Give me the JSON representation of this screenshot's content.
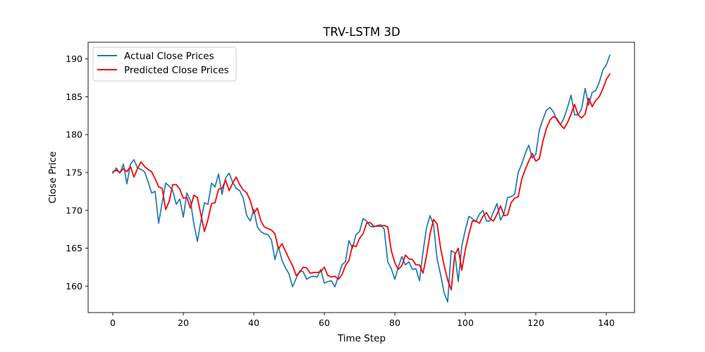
{
  "chart_data": {
    "type": "line",
    "title": "TRV-LSTM 3D",
    "xlabel": "Time Step",
    "ylabel": "Close Price",
    "xlim": [
      -7,
      148
    ],
    "ylim": [
      156.5,
      192.2
    ],
    "xticks": [
      0,
      20,
      40,
      60,
      80,
      100,
      120,
      140
    ],
    "yticks": [
      160,
      165,
      170,
      175,
      180,
      185,
      190
    ],
    "grid": false,
    "legend_position": "upper left",
    "series": [
      {
        "name": "Actual Close Prices",
        "color": "#1f77b4",
        "x_start": 0,
        "values": [
          174.9,
          175.6,
          174.9,
          176.1,
          173.5,
          176.1,
          176.7,
          175.6,
          175.4,
          175.1,
          173.8,
          172.3,
          172.5,
          168.3,
          171.0,
          173.6,
          173.2,
          172.6,
          170.8,
          171.5,
          169.1,
          172.3,
          171.3,
          168.2,
          165.9,
          168.6,
          171.0,
          170.8,
          173.6,
          173.1,
          174.8,
          172.1,
          174.3,
          174.9,
          173.7,
          172.9,
          172.6,
          171.6,
          169.3,
          168.6,
          170.1,
          167.8,
          167.2,
          166.9,
          166.8,
          166.1,
          163.5,
          165.2,
          163.4,
          162.4,
          161.6,
          159.9,
          161.0,
          162.0,
          161.9,
          160.9,
          161.2,
          161.3,
          161.2,
          162.2,
          160.4,
          160.6,
          160.7,
          159.9,
          161.3,
          162.8,
          163.2,
          166.0,
          165.0,
          166.8,
          167.2,
          168.9,
          168.6,
          167.9,
          167.8,
          168.0,
          168.1,
          167.5,
          163.2,
          162.3,
          160.9,
          162.5,
          163.9,
          162.8,
          163.2,
          162.2,
          162.3,
          160.7,
          164.5,
          167.7,
          169.3,
          168.1,
          163.6,
          161.5,
          159.1,
          157.9,
          164.7,
          164.4,
          160.6,
          165.3,
          167.4,
          169.2,
          168.9,
          168.5,
          169.5,
          170.0,
          168.6,
          168.6,
          169.8,
          170.9,
          168.7,
          169.6,
          171.7,
          171.8,
          172.1,
          175.0,
          176.1,
          177.5,
          178.6,
          176.9,
          177.4,
          180.6,
          182.0,
          183.2,
          183.6,
          183.0,
          181.9,
          181.3,
          182.2,
          183.6,
          185.2,
          182.6,
          182.6,
          183.4,
          186.1,
          183.9,
          185.6,
          185.8,
          186.9,
          188.5,
          189.2,
          190.5
        ]
      },
      {
        "name": "Predicted Close Prices",
        "color": "#ff0000",
        "x_start": 0,
        "values": [
          175.1,
          175.3,
          175.0,
          175.5,
          175.1,
          175.8,
          174.4,
          175.5,
          176.4,
          175.8,
          175.4,
          175.1,
          174.2,
          173.1,
          172.9,
          170.1,
          171.2,
          173.4,
          173.4,
          172.8,
          171.6,
          171.7,
          170.3,
          172.0,
          171.7,
          169.4,
          167.2,
          168.8,
          170.9,
          171.0,
          172.8,
          172.9,
          174.0,
          172.6,
          173.6,
          174.4,
          173.4,
          172.7,
          172.3,
          171.3,
          169.6,
          170.3,
          168.6,
          167.8,
          167.6,
          167.4,
          166.9,
          164.9,
          165.6,
          164.6,
          163.6,
          162.7,
          161.4,
          161.8,
          162.5,
          162.4,
          161.7,
          161.8,
          161.8,
          161.9,
          162.5,
          161.4,
          161.2,
          161.3,
          160.9,
          161.5,
          162.7,
          163.4,
          165.4,
          165.2,
          166.3,
          166.9,
          168.3,
          168.4,
          167.9,
          167.9,
          167.9,
          168.0,
          167.8,
          164.7,
          163.1,
          162.2,
          162.7,
          164.1,
          163.6,
          163.5,
          162.8,
          162.8,
          161.7,
          164.0,
          166.9,
          168.8,
          168.2,
          165.0,
          162.7,
          160.8,
          159.5,
          164.1,
          165.0,
          162.1,
          164.8,
          166.8,
          168.6,
          168.6,
          168.3,
          169.2,
          169.7,
          168.9,
          168.6,
          169.5,
          170.6,
          169.3,
          169.4,
          171.0,
          171.6,
          171.8,
          174.1,
          175.4,
          176.5,
          177.5,
          176.5,
          176.8,
          179.1,
          180.8,
          181.9,
          182.4,
          182.1,
          181.3,
          180.8,
          181.6,
          182.7,
          184.0,
          182.6,
          182.2,
          182.7,
          184.8,
          183.7,
          184.5,
          185.0,
          186.0,
          187.3,
          188.0
        ]
      }
    ]
  }
}
